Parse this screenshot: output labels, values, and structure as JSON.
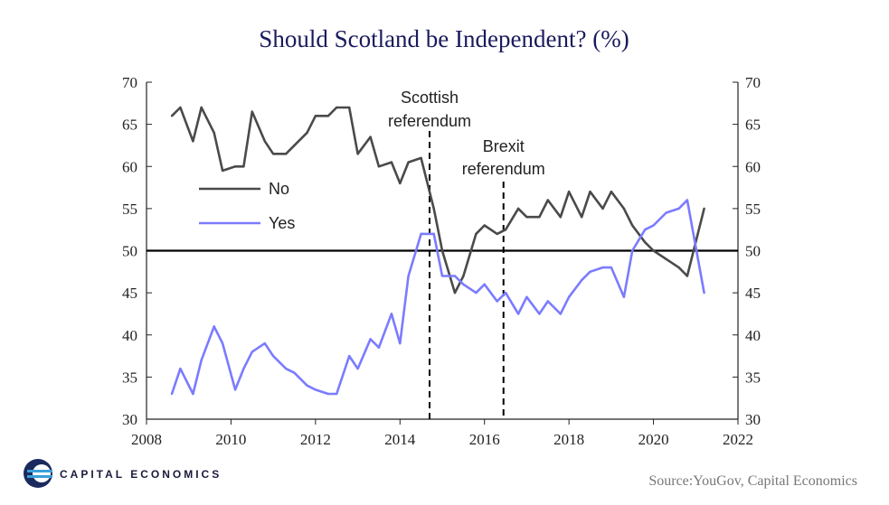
{
  "chart_data": {
    "type": "line",
    "title": "Should Scotland be Independent? (%)",
    "xlim": [
      2008,
      2022
    ],
    "ylim": [
      30,
      70
    ],
    "x_ticks": [
      "2008",
      "2010",
      "2012",
      "2014",
      "2016",
      "2018",
      "2020",
      "2022"
    ],
    "y_ticks": [
      "30",
      "35",
      "40",
      "45",
      "50",
      "55",
      "60",
      "65",
      "70"
    ],
    "reference_line": 50,
    "legend_position": "left-middle",
    "colors": {
      "No": "#4a4a4a",
      "Yes": "#7b7bff"
    },
    "series": [
      {
        "name": "No",
        "x": [
          2008.6,
          2008.8,
          2009.1,
          2009.3,
          2009.6,
          2009.8,
          2010.1,
          2010.3,
          2010.5,
          2010.8,
          2011.0,
          2011.3,
          2011.5,
          2011.8,
          2012.0,
          2012.3,
          2012.5,
          2012.8,
          2013.0,
          2013.3,
          2013.5,
          2013.8,
          2014.0,
          2014.2,
          2014.5,
          2014.8,
          2015.0,
          2015.3,
          2015.5,
          2015.8,
          2016.0,
          2016.3,
          2016.5,
          2016.8,
          2017.0,
          2017.3,
          2017.5,
          2017.8,
          2018.0,
          2018.3,
          2018.5,
          2018.8,
          2019.0,
          2019.3,
          2019.5,
          2019.8,
          2020.0,
          2020.3,
          2020.6,
          2020.8,
          2021.2
        ],
        "values": [
          66,
          67,
          63,
          67,
          64,
          59.5,
          60,
          60,
          66.5,
          63,
          61.5,
          61.5,
          62.5,
          64,
          66,
          66,
          67,
          67,
          61.5,
          63.5,
          60,
          60.5,
          58,
          60.5,
          61,
          55,
          50,
          45,
          47,
          52,
          53,
          52,
          52.5,
          55,
          54,
          54,
          56,
          54,
          57,
          54,
          57,
          55,
          57,
          55,
          53,
          51,
          50,
          49,
          48,
          47,
          55
        ]
      },
      {
        "name": "Yes",
        "x": [
          2008.6,
          2008.8,
          2009.1,
          2009.3,
          2009.6,
          2009.8,
          2010.1,
          2010.3,
          2010.5,
          2010.8,
          2011.0,
          2011.3,
          2011.5,
          2011.8,
          2012.0,
          2012.3,
          2012.5,
          2012.8,
          2013.0,
          2013.3,
          2013.5,
          2013.8,
          2014.0,
          2014.2,
          2014.5,
          2014.8,
          2015.0,
          2015.3,
          2015.5,
          2015.8,
          2016.0,
          2016.3,
          2016.5,
          2016.8,
          2017.0,
          2017.3,
          2017.5,
          2017.8,
          2018.0,
          2018.3,
          2018.5,
          2018.8,
          2019.0,
          2019.3,
          2019.5,
          2019.8,
          2020.0,
          2020.3,
          2020.6,
          2020.8,
          2021.2
        ],
        "values": [
          33,
          36,
          33,
          37,
          41,
          39,
          33.5,
          36,
          38,
          39,
          37.5,
          36,
          35.5,
          34,
          33.5,
          33,
          33,
          37.5,
          36,
          39.5,
          38.5,
          42.5,
          39,
          47,
          52,
          52,
          47,
          47,
          46,
          45,
          46,
          44,
          45,
          42.5,
          44.5,
          42.5,
          44,
          42.5,
          44.5,
          46.5,
          47.5,
          48,
          48,
          44.5,
          50,
          52.5,
          53,
          54.5,
          55,
          56,
          45
        ]
      }
    ],
    "annotations": [
      {
        "x": 2014.7,
        "label_lines": [
          "Scottish",
          "referendum"
        ]
      },
      {
        "x": 2016.45,
        "label_lines": [
          "Brexit",
          "referendum"
        ]
      }
    ],
    "source": "Source:YouGov,  Capital Economics",
    "brand": "CAPITAL ECONOMICS"
  }
}
